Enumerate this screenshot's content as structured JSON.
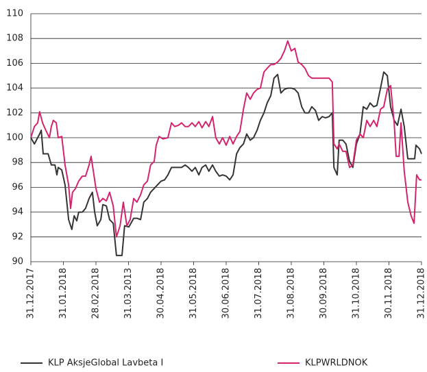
{
  "chart_data": {
    "type": "line",
    "xlim": [
      0,
      12
    ],
    "xticks": [
      {
        "value": 0,
        "label": "31.12.2017"
      },
      {
        "value": 1,
        "label": "31.01.2018"
      },
      {
        "value": 2,
        "label": "28.02.2018"
      },
      {
        "value": 3,
        "label": "31.03.2013"
      },
      {
        "value": 4,
        "label": "30.04.2018"
      },
      {
        "value": 5,
        "label": "31.05.2018"
      },
      {
        "value": 6,
        "label": "30.06.2018"
      },
      {
        "value": 7,
        "label": "31.07.2018"
      },
      {
        "value": 8,
        "label": "31.08.2018"
      },
      {
        "value": 9,
        "label": "30.09.2018"
      },
      {
        "value": 10,
        "label": "31.10.2018"
      },
      {
        "value": 11,
        "label": "30.11.2018"
      },
      {
        "value": 12,
        "label": "31.12.2018"
      }
    ],
    "ylim": [
      90,
      110
    ],
    "yticks": [
      90,
      92,
      94,
      96,
      98,
      100,
      102,
      104,
      106,
      108,
      110
    ],
    "grid": true,
    "legend": "bottom",
    "series": [
      {
        "name": "KLP AksjeGlobal Lavbeta I",
        "color": "#333333",
        "x": [
          0,
          0.11,
          0.27,
          0.32,
          0.38,
          0.53,
          0.63,
          0.74,
          0.8,
          0.84,
          0.95,
          1.05,
          1.16,
          1.26,
          1.33,
          1.41,
          1.47,
          1.58,
          1.68,
          1.79,
          1.89,
          1.96,
          2.04,
          2.15,
          2.21,
          2.32,
          2.42,
          2.53,
          2.63,
          2.8,
          2.88,
          3.01,
          3.16,
          3.26,
          3.37,
          3.47,
          3.58,
          3.68,
          3.89,
          4.0,
          4.11,
          4.21,
          4.32,
          4.42,
          4.63,
          4.74,
          4.84,
          4.95,
          5.05,
          5.16,
          5.26,
          5.37,
          5.47,
          5.58,
          5.68,
          5.79,
          5.89,
          6.0,
          6.11,
          6.21,
          6.32,
          6.42,
          6.53,
          6.63,
          6.74,
          6.84,
          6.95,
          7.05,
          7.16,
          7.26,
          7.37,
          7.47,
          7.58,
          7.68,
          7.79,
          7.89,
          8.0,
          8.11,
          8.21,
          8.32,
          8.42,
          8.53,
          8.63,
          8.74,
          8.84,
          8.95,
          9.05,
          9.16,
          9.26,
          9.31,
          9.41,
          9.47,
          9.58,
          9.68,
          9.79,
          9.89,
          10.0,
          10.11,
          10.21,
          10.32,
          10.42,
          10.53,
          10.63,
          10.74,
          10.84,
          10.95,
          11.05,
          11.16,
          11.26,
          11.37,
          11.47,
          11.58,
          11.68,
          11.79,
          11.83,
          11.94,
          12
        ],
        "values": [
          100,
          99.5,
          100.3,
          100.6,
          98.7,
          98.7,
          97.8,
          97.8,
          97.0,
          97.6,
          97.4,
          96.2,
          93.4,
          92.6,
          93.7,
          93.3,
          94.0,
          94.0,
          94.3,
          95.1,
          95.6,
          94.0,
          92.9,
          93.4,
          94.6,
          94.5,
          93.4,
          93.1,
          90.5,
          90.5,
          92.9,
          92.8,
          93.5,
          93.5,
          93.4,
          94.8,
          95.1,
          95.6,
          96.2,
          96.5,
          96.6,
          97.0,
          97.6,
          97.6,
          97.6,
          97.8,
          97.6,
          97.3,
          97.6,
          97.0,
          97.6,
          97.8,
          97.3,
          97.8,
          97.3,
          96.9,
          97.0,
          96.9,
          96.6,
          97.0,
          98.7,
          99.2,
          99.5,
          100.3,
          99.8,
          100.0,
          100.6,
          101.4,
          102.0,
          102.8,
          103.4,
          104.8,
          105.1,
          103.6,
          103.9,
          104.0,
          104.0,
          103.9,
          103.6,
          102.5,
          102.0,
          102.0,
          102.5,
          102.2,
          101.4,
          101.7,
          101.6,
          101.7,
          102.0,
          97.6,
          97.0,
          99.8,
          99.8,
          99.5,
          98.1,
          97.6,
          99.5,
          100.3,
          102.5,
          102.3,
          102.8,
          102.5,
          102.6,
          104.0,
          105.3,
          105.0,
          102.5,
          101.4,
          101.0,
          102.3,
          100.9,
          98.3,
          98.3,
          98.3,
          99.4,
          99.1,
          98.7
        ]
      },
      {
        "name": "KLPWRLDNOK",
        "color": "#d4236e",
        "x": [
          0,
          0.11,
          0.21,
          0.27,
          0.36,
          0.46,
          0.57,
          0.63,
          0.69,
          0.78,
          0.84,
          0.95,
          1.05,
          1.16,
          1.22,
          1.28,
          1.37,
          1.47,
          1.58,
          1.68,
          1.79,
          1.85,
          1.92,
          2.0,
          2.11,
          2.21,
          2.32,
          2.42,
          2.53,
          2.63,
          2.74,
          2.84,
          2.95,
          3.05,
          3.16,
          3.26,
          3.37,
          3.47,
          3.58,
          3.68,
          3.79,
          3.85,
          3.94,
          4.06,
          4.21,
          4.32,
          4.42,
          4.53,
          4.63,
          4.74,
          4.84,
          4.95,
          5.05,
          5.16,
          5.26,
          5.37,
          5.47,
          5.58,
          5.68,
          5.79,
          5.89,
          6.0,
          6.11,
          6.21,
          6.32,
          6.42,
          6.53,
          6.63,
          6.74,
          6.84,
          6.95,
          7.05,
          7.16,
          7.26,
          7.37,
          7.47,
          7.58,
          7.68,
          7.79,
          7.89,
          8.0,
          8.11,
          8.21,
          8.32,
          8.42,
          8.53,
          8.63,
          8.74,
          8.84,
          8.95,
          9.05,
          9.16,
          9.26,
          9.31,
          9.41,
          9.47,
          9.58,
          9.68,
          9.79,
          9.89,
          10.0,
          10.11,
          10.21,
          10.32,
          10.42,
          10.53,
          10.63,
          10.74,
          10.84,
          10.95,
          11.05,
          11.16,
          11.22,
          11.31,
          11.37,
          11.47,
          11.58,
          11.68,
          11.77,
          11.85,
          11.94,
          12
        ],
        "values": [
          100,
          100.9,
          101.2,
          102.1,
          101.2,
          100.6,
          100.0,
          100.9,
          101.4,
          101.2,
          100.0,
          100.1,
          97.8,
          96.2,
          94.3,
          95.6,
          95.9,
          96.5,
          96.9,
          96.9,
          97.8,
          98.5,
          97.3,
          95.9,
          94.8,
          95.1,
          94.9,
          95.6,
          94.5,
          92.0,
          92.9,
          94.8,
          92.9,
          93.4,
          95.1,
          94.8,
          95.4,
          96.2,
          96.5,
          97.8,
          98.1,
          99.4,
          100.1,
          99.9,
          100.0,
          101.2,
          100.9,
          101.0,
          101.2,
          100.9,
          100.9,
          101.2,
          100.9,
          101.3,
          100.8,
          101.3,
          100.9,
          101.7,
          100.0,
          99.5,
          100.0,
          99.4,
          100.1,
          99.5,
          100.1,
          100.5,
          102.3,
          103.6,
          103.1,
          103.6,
          103.9,
          104.0,
          105.3,
          105.6,
          105.9,
          105.9,
          106.1,
          106.4,
          107.0,
          107.8,
          107.0,
          107.2,
          106.1,
          105.9,
          105.6,
          105.0,
          104.8,
          104.8,
          104.8,
          104.8,
          104.8,
          104.8,
          104.5,
          99.5,
          99.1,
          99.5,
          98.9,
          98.9,
          97.6,
          97.8,
          99.8,
          100.3,
          100.0,
          101.4,
          100.9,
          101.4,
          100.9,
          102.3,
          102.5,
          103.9,
          104.2,
          101.2,
          98.5,
          98.5,
          101.2,
          97.3,
          94.8,
          93.7,
          93.1,
          97.0,
          96.6,
          96.6
        ]
      }
    ]
  }
}
